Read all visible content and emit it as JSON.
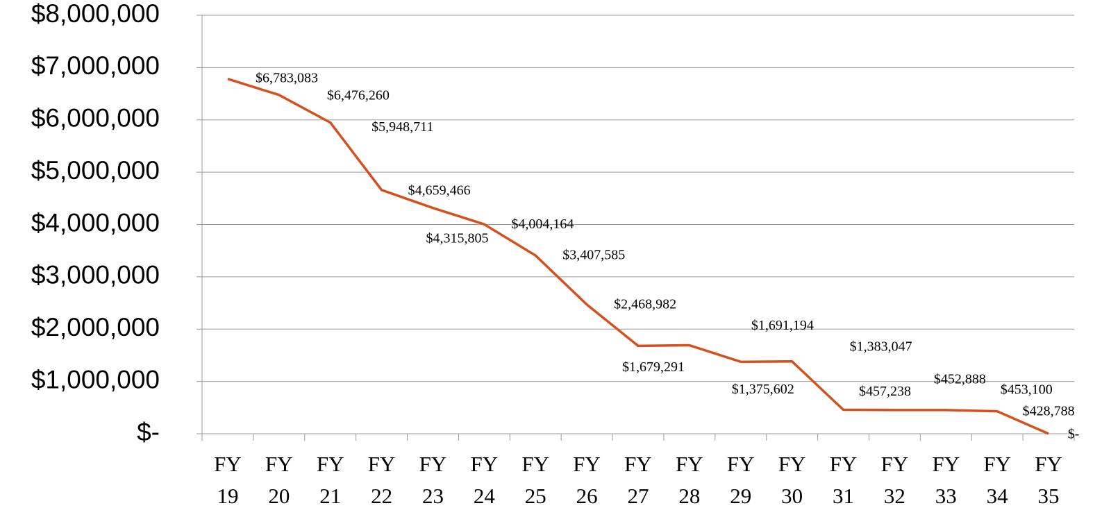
{
  "chart_data": {
    "type": "line",
    "categories": [
      "FY 19",
      "FY 20",
      "FY 21",
      "FY 22",
      "FY 23",
      "FY 24",
      "FY 25",
      "FY 26",
      "FY 27",
      "FY 28",
      "FY 29",
      "FY 30",
      "FY 31",
      "FY 32",
      "FY 33",
      "FY 34",
      "FY 35"
    ],
    "series": [
      {
        "color": "#d4501f",
        "values": [
          6783083,
          6476260,
          5948711,
          4659466,
          4315805,
          4004164,
          3407585,
          2468982,
          1679291,
          1691194,
          1375602,
          1383047,
          457238,
          452888,
          453100,
          428788,
          0
        ],
        "value_labels": [
          "$6,783,083",
          "$6,476,260",
          "$5,948,711",
          "$4,659,466",
          "$4,315,805",
          "$4,004,164",
          "$3,407,585",
          "$2,468,982",
          "$1,679,291",
          "$1,691,194",
          "$1,375,602",
          "$1,383,047",
          "$457,238",
          "$452,888",
          "$453,100",
          "$428,788",
          "$-"
        ]
      }
    ],
    "ylim": [
      0,
      8000000
    ],
    "yticks": [
      {
        "value": 0,
        "label": "$-"
      },
      {
        "value": 1000000,
        "label": "$1,000,000"
      },
      {
        "value": 2000000,
        "label": "$2,000,000"
      },
      {
        "value": 3000000,
        "label": "$3,000,000"
      },
      {
        "value": 4000000,
        "label": "$4,000,000"
      },
      {
        "value": 5000000,
        "label": "$5,000,000"
      },
      {
        "value": 6000000,
        "label": "$6,000,000"
      },
      {
        "value": 7000000,
        "label": "$7,000,000"
      },
      {
        "value": 8000000,
        "label": "$8,000,000"
      }
    ],
    "grid": true
  }
}
